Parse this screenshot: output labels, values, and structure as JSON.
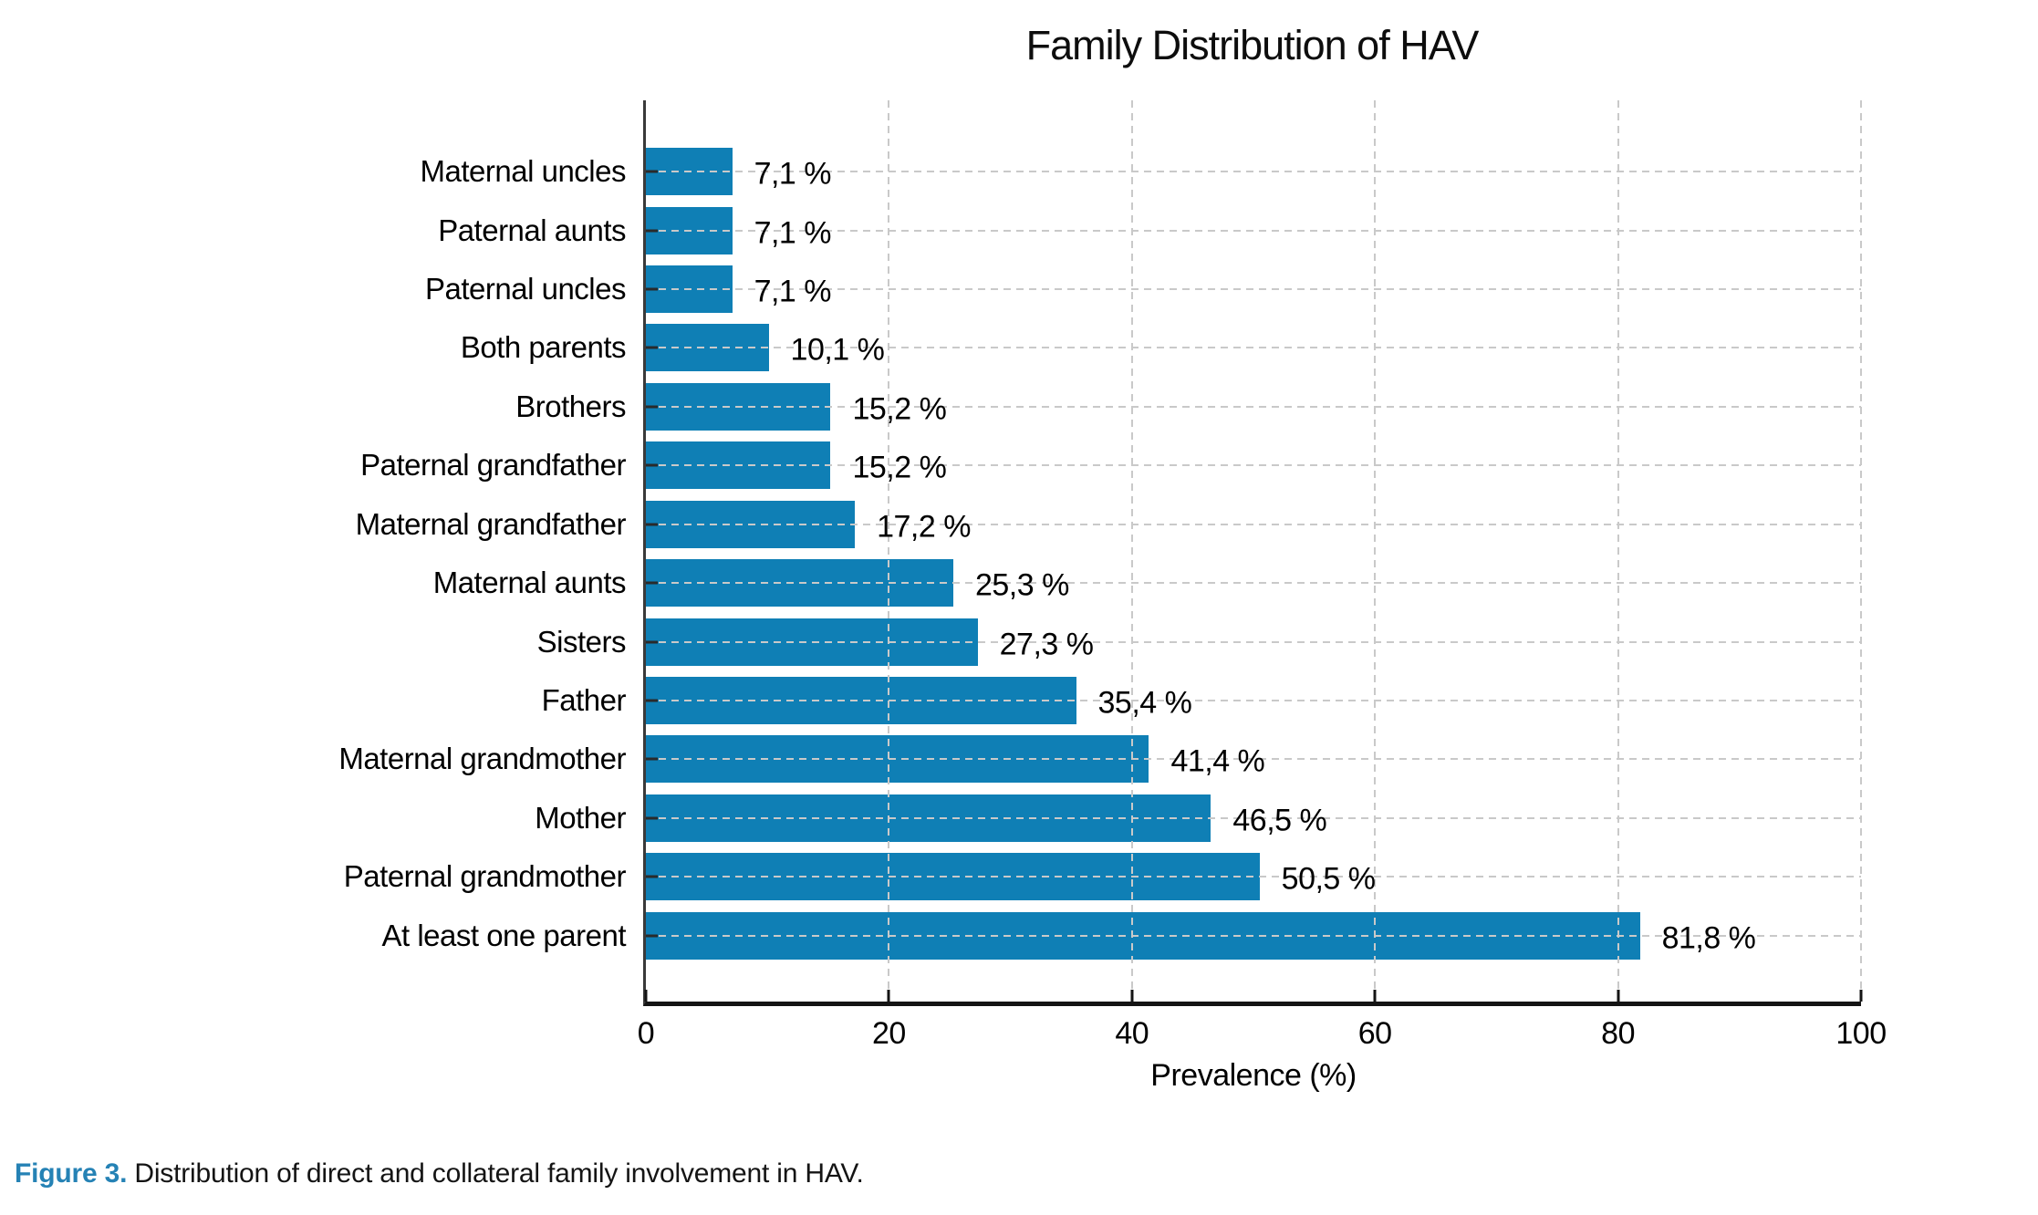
{
  "title": "Family Distribution of HAV",
  "caption": {
    "label": "Figure 3.",
    "text": " Distribution of direct and collateral family involvement in HAV."
  },
  "colors": {
    "bar": "#0f7fb5",
    "grid": "#c9c9c9",
    "axis": "#141414",
    "caption_accent": "#2582b5"
  },
  "chart_data": {
    "type": "bar",
    "orientation": "horizontal",
    "title": "Family Distribution of HAV",
    "xlabel": "Prevalence (%)",
    "xlim": [
      0,
      100
    ],
    "xticks": [
      0,
      20,
      40,
      60,
      80,
      100
    ],
    "grid": "dashed, horizontal and vertical, drawn over bars",
    "legend": "none",
    "categories": [
      "Maternal uncles",
      "Paternal aunts",
      "Paternal uncles",
      "Both parents",
      "Brothers",
      "Paternal grandfather",
      "Maternal grandfather",
      "Maternal aunts",
      "Sisters",
      "Father",
      "Maternal grandmother",
      "Mother",
      "Paternal grandmother",
      "At least one parent"
    ],
    "values": [
      7.1,
      7.1,
      7.1,
      10.1,
      15.2,
      15.2,
      17.2,
      25.3,
      27.3,
      35.4,
      41.4,
      46.5,
      50.5,
      81.8
    ],
    "value_labels": [
      "7,1 %",
      "7,1 %",
      "7,1 %",
      "10,1 %",
      "15,2 %",
      "15,2 %",
      "17,2 %",
      "25,3 %",
      "27,3 %",
      "35,4 %",
      "41,4 %",
      "46,5 %",
      "50,5 %",
      "81,8 %"
    ]
  }
}
